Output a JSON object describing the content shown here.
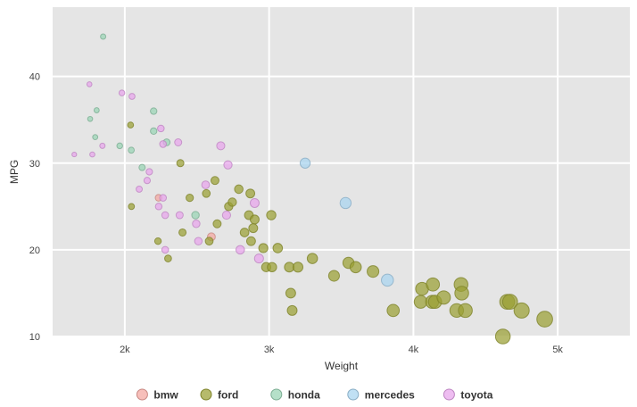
{
  "chart_data": {
    "type": "scatter",
    "title": "",
    "xlabel": "Weight",
    "ylabel": "MPG",
    "xlim": [
      1500,
      5500
    ],
    "ylim": [
      10,
      48
    ],
    "x_ticks": [
      {
        "value": 2000,
        "label": "2k"
      },
      {
        "value": 3000,
        "label": "3k"
      },
      {
        "value": 4000,
        "label": "4k"
      },
      {
        "value": 5000,
        "label": "5k"
      }
    ],
    "y_ticks": [
      {
        "value": 10,
        "label": "10"
      },
      {
        "value": 20,
        "label": "20"
      },
      {
        "value": 30,
        "label": "30"
      },
      {
        "value": 40,
        "label": "40"
      }
    ],
    "grid": true,
    "legend_position": "bottom",
    "point_size_encodes": "Weight",
    "series": [
      {
        "name": "bmw",
        "color": "#f4a6a0",
        "points": [
          [
            2234,
            26
          ],
          [
            2600,
            21.5
          ]
        ]
      },
      {
        "name": "ford",
        "color": "#9aa033",
        "points": [
          [
            2046,
            25
          ],
          [
            2040,
            34.4
          ],
          [
            2230,
            21
          ],
          [
            2300,
            19
          ],
          [
            2385,
            30
          ],
          [
            2450,
            26
          ],
          [
            2400,
            22
          ],
          [
            2565,
            26.5
          ],
          [
            2585,
            21
          ],
          [
            2625,
            28
          ],
          [
            2640,
            23
          ],
          [
            2720,
            25
          ],
          [
            2745,
            25.5
          ],
          [
            2790,
            27
          ],
          [
            2830,
            22
          ],
          [
            2860,
            24
          ],
          [
            2870,
            26.5
          ],
          [
            2875,
            21
          ],
          [
            2890,
            22.5
          ],
          [
            2900,
            23.5
          ],
          [
            2960,
            20.2
          ],
          [
            2980,
            18
          ],
          [
            3020,
            18
          ],
          [
            3015,
            24
          ],
          [
            3060,
            20.2
          ],
          [
            3140,
            18
          ],
          [
            3150,
            15
          ],
          [
            3160,
            13
          ],
          [
            3200,
            18
          ],
          [
            3300,
            19
          ],
          [
            3450,
            17
          ],
          [
            3550,
            18.5
          ],
          [
            3600,
            18
          ],
          [
            3720,
            17.5
          ],
          [
            3860,
            13
          ],
          [
            4050,
            14
          ],
          [
            4060,
            15.5
          ],
          [
            4130,
            14
          ],
          [
            4135,
            16
          ],
          [
            4150,
            14
          ],
          [
            4210,
            14.5
          ],
          [
            4300,
            13
          ],
          [
            4330,
            16
          ],
          [
            4335,
            15
          ],
          [
            4360,
            13
          ],
          [
            4620,
            10
          ],
          [
            4650,
            14
          ],
          [
            4670,
            14
          ],
          [
            4750,
            13
          ],
          [
            4910,
            12
          ]
        ]
      },
      {
        "name": "honda",
        "color": "#98d4b4",
        "points": [
          [
            1850,
            44.6
          ],
          [
            1760,
            35.1
          ],
          [
            1795,
            33
          ],
          [
            1805,
            36.1
          ],
          [
            1965,
            32
          ],
          [
            2045,
            31.5
          ],
          [
            2120,
            29.5
          ],
          [
            2200,
            36
          ],
          [
            2200,
            33.7
          ],
          [
            2290,
            32.4
          ],
          [
            2490,
            24
          ]
        ]
      },
      {
        "name": "mercedes",
        "color": "#a8d4f0",
        "points": [
          [
            3250,
            30
          ],
          [
            3530,
            25.4
          ],
          [
            3820,
            16.5
          ]
        ]
      },
      {
        "name": "toyota",
        "color": "#e8a4ec",
        "points": [
          [
            1650,
            31
          ],
          [
            1755,
            39.1
          ],
          [
            1775,
            31
          ],
          [
            1845,
            32
          ],
          [
            1980,
            38.1
          ],
          [
            2050,
            37.7
          ],
          [
            2100,
            27
          ],
          [
            2155,
            28
          ],
          [
            2170,
            29
          ],
          [
            2235,
            25
          ],
          [
            2250,
            34
          ],
          [
            2265,
            32.2
          ],
          [
            2265,
            26
          ],
          [
            2280,
            20
          ],
          [
            2280,
            24
          ],
          [
            2370,
            32.4
          ],
          [
            2380,
            24
          ],
          [
            2495,
            23
          ],
          [
            2510,
            21
          ],
          [
            2560,
            27.5
          ],
          [
            2665,
            32
          ],
          [
            2705,
            24
          ],
          [
            2715,
            29.8
          ],
          [
            2800,
            20
          ],
          [
            2900,
            25.4
          ],
          [
            2930,
            19
          ]
        ]
      }
    ]
  }
}
